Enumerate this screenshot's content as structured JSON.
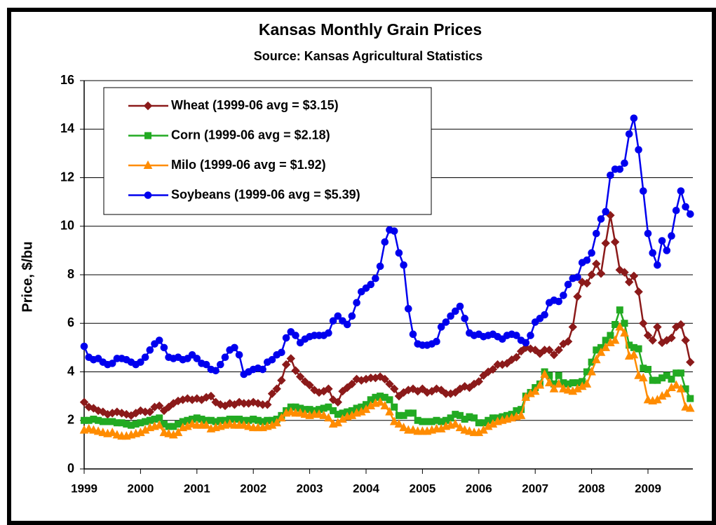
{
  "chart_data": {
    "type": "line",
    "title": "Kansas Monthly Grain Prices",
    "subtitle": "Source:  Kansas Agricultural Statistics",
    "y_label": "Price, $/bu",
    "categories": [
      "1999",
      null,
      null,
      null,
      null,
      null,
      null,
      null,
      null,
      null,
      null,
      null,
      "2000",
      null,
      null,
      null,
      null,
      null,
      null,
      null,
      null,
      null,
      null,
      null,
      "2001",
      null,
      null,
      null,
      null,
      null,
      null,
      null,
      null,
      null,
      null,
      null,
      "2002",
      null,
      null,
      null,
      null,
      null,
      null,
      null,
      null,
      null,
      null,
      null,
      "2003",
      null,
      null,
      null,
      null,
      null,
      null,
      null,
      null,
      null,
      null,
      null,
      "2004",
      null,
      null,
      null,
      null,
      null,
      null,
      null,
      null,
      null,
      null,
      null,
      "2005",
      null,
      null,
      null,
      null,
      null,
      null,
      null,
      null,
      null,
      null,
      null,
      "2006",
      null,
      null,
      null,
      null,
      null,
      null,
      null,
      null,
      null,
      null,
      null,
      "2007",
      null,
      null,
      null,
      null,
      null,
      null,
      null,
      null,
      null,
      null,
      null,
      "2008",
      null,
      null,
      null,
      null,
      null,
      null,
      null,
      null,
      null,
      null,
      null,
      "2009",
      null,
      null,
      null,
      null,
      null,
      null,
      null,
      null,
      null
    ],
    "ylim": [
      0,
      16
    ],
    "yticks": [
      0,
      2,
      4,
      6,
      8,
      10,
      12,
      14,
      16
    ],
    "grid": true,
    "legend": "upper left",
    "series": [
      {
        "name": "Wheat (1999-06 avg = $3.15)",
        "color": "#8b1a1a",
        "marker": "diamond",
        "values": [
          2.75,
          2.55,
          2.5,
          2.4,
          2.35,
          2.25,
          2.3,
          2.35,
          2.3,
          2.25,
          2.2,
          2.3,
          2.4,
          2.35,
          2.35,
          2.55,
          2.6,
          2.4,
          2.55,
          2.7,
          2.8,
          2.85,
          2.9,
          2.85,
          2.9,
          2.85,
          2.95,
          3.0,
          2.75,
          2.65,
          2.6,
          2.7,
          2.65,
          2.75,
          2.7,
          2.7,
          2.75,
          2.7,
          2.65,
          2.65,
          3.1,
          3.3,
          3.65,
          4.3,
          4.55,
          4.05,
          3.8,
          3.6,
          3.45,
          3.25,
          3.15,
          3.2,
          3.3,
          2.85,
          2.75,
          3.2,
          3.35,
          3.5,
          3.7,
          3.65,
          3.7,
          3.75,
          3.75,
          3.8,
          3.7,
          3.5,
          3.3,
          3.0,
          3.15,
          3.25,
          3.3,
          3.2,
          3.3,
          3.15,
          3.2,
          3.3,
          3.25,
          3.1,
          3.1,
          3.15,
          3.3,
          3.4,
          3.35,
          3.5,
          3.6,
          3.85,
          4.0,
          4.1,
          4.3,
          4.3,
          4.35,
          4.5,
          4.6,
          4.85,
          5.0,
          4.95,
          4.9,
          4.75,
          4.9,
          4.9,
          4.7,
          4.9,
          5.15,
          5.25,
          5.85,
          7.1,
          7.7,
          7.65,
          8.0,
          8.45,
          8.05,
          9.3,
          10.45,
          9.35,
          8.2,
          8.1,
          7.7,
          7.95,
          7.3,
          6.0,
          5.5,
          5.3,
          5.85,
          5.2,
          5.3,
          5.4,
          5.85,
          5.95,
          5.3,
          4.4
        ]
      },
      {
        "name": "Corn (1999-06 avg = $2.18)",
        "color": "#22aa22",
        "marker": "square",
        "values": [
          2.0,
          2.0,
          2.05,
          2.0,
          1.95,
          1.95,
          1.95,
          1.9,
          1.9,
          1.85,
          1.8,
          1.85,
          1.9,
          1.95,
          2.0,
          2.05,
          2.1,
          1.85,
          1.75,
          1.75,
          1.85,
          1.95,
          2.0,
          2.05,
          2.1,
          2.05,
          2.0,
          2.0,
          1.95,
          2.0,
          2.0,
          2.05,
          2.05,
          2.05,
          2.0,
          2.0,
          2.05,
          2.0,
          1.95,
          2.0,
          2.0,
          2.05,
          2.2,
          2.4,
          2.55,
          2.55,
          2.5,
          2.45,
          2.45,
          2.4,
          2.45,
          2.5,
          2.55,
          2.4,
          2.25,
          2.3,
          2.35,
          2.4,
          2.5,
          2.55,
          2.65,
          2.85,
          2.95,
          3.0,
          2.95,
          2.85,
          2.55,
          2.2,
          2.2,
          2.3,
          2.3,
          2.0,
          1.95,
          1.95,
          1.95,
          2.0,
          1.95,
          2.0,
          2.1,
          2.25,
          2.2,
          2.05,
          2.15,
          2.1,
          1.9,
          1.9,
          2.0,
          2.1,
          2.1,
          2.15,
          2.2,
          2.25,
          2.4,
          2.45,
          3.0,
          3.15,
          3.35,
          3.5,
          4.0,
          3.85,
          3.5,
          3.85,
          3.55,
          3.5,
          3.55,
          3.55,
          3.6,
          4.0,
          4.4,
          4.9,
          5.0,
          5.3,
          5.5,
          5.95,
          6.55,
          6.0,
          5.1,
          5.0,
          4.95,
          4.15,
          4.1,
          3.65,
          3.65,
          3.75,
          3.85,
          3.7,
          3.95,
          3.95,
          3.3,
          2.9
        ]
      },
      {
        "name": "Milo (1999-06 avg = $1.92)",
        "color": "#ff8c00",
        "marker": "triangle",
        "values": [
          1.6,
          1.65,
          1.6,
          1.55,
          1.5,
          1.45,
          1.5,
          1.4,
          1.35,
          1.35,
          1.4,
          1.45,
          1.5,
          1.6,
          1.7,
          1.75,
          1.8,
          1.5,
          1.45,
          1.4,
          1.5,
          1.7,
          1.75,
          1.85,
          1.8,
          1.8,
          1.8,
          1.65,
          1.7,
          1.75,
          1.8,
          1.85,
          1.8,
          1.8,
          1.8,
          1.75,
          1.7,
          1.7,
          1.7,
          1.75,
          1.8,
          1.9,
          2.1,
          2.3,
          2.35,
          2.3,
          2.3,
          2.25,
          2.2,
          2.25,
          2.25,
          2.2,
          2.1,
          1.85,
          1.9,
          2.05,
          2.15,
          2.2,
          2.3,
          2.35,
          2.45,
          2.6,
          2.7,
          2.75,
          2.6,
          2.35,
          1.95,
          1.85,
          1.7,
          1.6,
          1.6,
          1.55,
          1.55,
          1.55,
          1.6,
          1.65,
          1.65,
          1.75,
          1.8,
          1.85,
          1.7,
          1.6,
          1.55,
          1.5,
          1.5,
          1.6,
          1.75,
          1.85,
          1.95,
          2.0,
          2.05,
          2.1,
          2.15,
          2.2,
          2.95,
          3.1,
          3.2,
          3.45,
          3.9,
          3.55,
          3.3,
          3.5,
          3.3,
          3.25,
          3.2,
          3.3,
          3.4,
          3.5,
          4.0,
          4.5,
          4.8,
          5.0,
          5.2,
          5.3,
          5.85,
          5.6,
          4.65,
          4.7,
          3.85,
          3.75,
          2.85,
          2.8,
          2.85,
          3.0,
          3.1,
          3.35,
          3.45,
          3.3,
          2.55,
          2.5
        ]
      },
      {
        "name": "Soybeans (1999-06 avg = $5.39)",
        "color": "#0000ee",
        "marker": "circle",
        "values": [
          5.05,
          4.6,
          4.5,
          4.55,
          4.4,
          4.3,
          4.35,
          4.55,
          4.55,
          4.5,
          4.4,
          4.3,
          4.4,
          4.6,
          4.9,
          5.15,
          5.3,
          5.0,
          4.6,
          4.55,
          4.6,
          4.5,
          4.55,
          4.7,
          4.55,
          4.35,
          4.3,
          4.1,
          4.05,
          4.3,
          4.6,
          4.9,
          5.0,
          4.7,
          3.9,
          4.0,
          4.1,
          4.15,
          4.1,
          4.4,
          4.5,
          4.7,
          4.8,
          5.4,
          5.65,
          5.5,
          5.2,
          5.35,
          5.45,
          5.5,
          5.5,
          5.5,
          5.6,
          6.1,
          6.3,
          6.1,
          5.95,
          6.3,
          6.85,
          7.3,
          7.45,
          7.6,
          7.85,
          8.35,
          9.35,
          9.85,
          9.8,
          8.9,
          8.4,
          6.6,
          5.55,
          5.15,
          5.1,
          5.1,
          5.15,
          5.25,
          5.85,
          6.05,
          6.3,
          6.5,
          6.7,
          6.2,
          5.6,
          5.5,
          5.55,
          5.45,
          5.5,
          5.55,
          5.45,
          5.35,
          5.5,
          5.55,
          5.5,
          5.3,
          5.2,
          5.5,
          6.05,
          6.2,
          6.35,
          6.85,
          6.95,
          6.9,
          7.15,
          7.6,
          7.85,
          7.9,
          8.5,
          8.6,
          8.9,
          9.7,
          10.3,
          10.6,
          12.1,
          12.35,
          12.35,
          12.6,
          13.8,
          14.45,
          13.15,
          11.45,
          9.7,
          8.9,
          8.4,
          9.4,
          9.0,
          9.6,
          10.65,
          11.45,
          10.8,
          10.5
        ]
      }
    ]
  }
}
